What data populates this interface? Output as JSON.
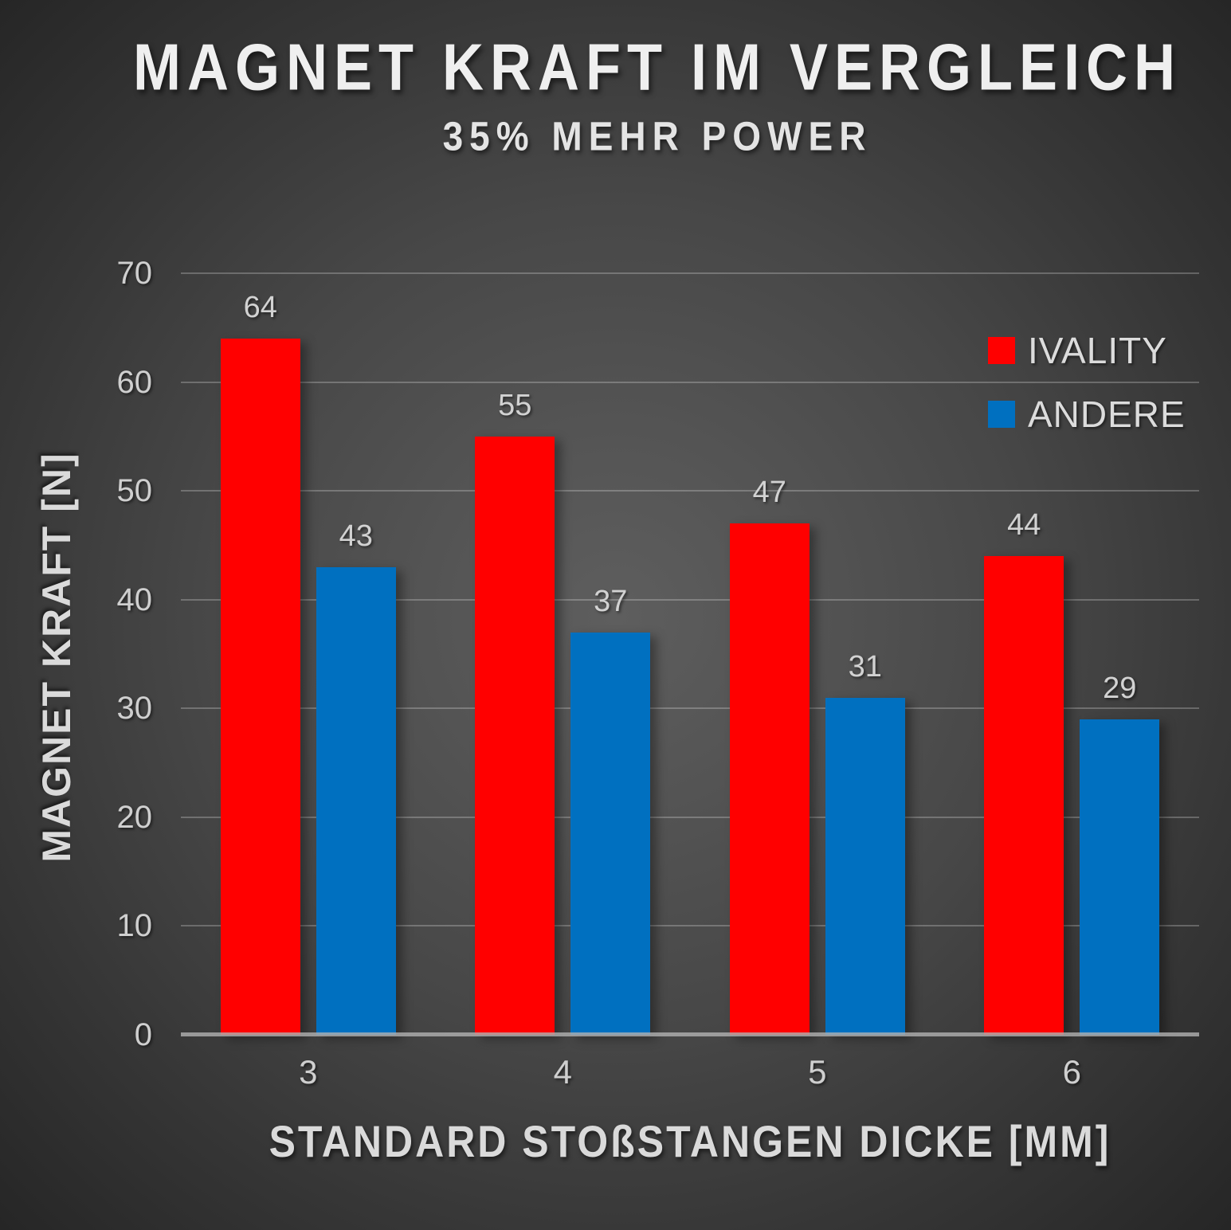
{
  "chart_data": {
    "type": "bar",
    "title": "MAGNET KRAFT IM VERGLEICH",
    "subtitle": "35% MEHR POWER",
    "xlabel": "STANDARD STOßSTANGEN DICKE [MM]",
    "ylabel": "MAGNET KRAFT [N]",
    "categories": [
      "3",
      "4",
      "5",
      "6"
    ],
    "series": [
      {
        "name": "IVALITY",
        "color": "#ff0000",
        "values": [
          64,
          55,
          47,
          44
        ]
      },
      {
        "name": "ANDERE",
        "color": "#0070c0",
        "values": [
          43,
          37,
          31,
          29
        ]
      }
    ],
    "ylim": [
      0,
      70
    ],
    "yticks": [
      0,
      10,
      20,
      30,
      40,
      50,
      60,
      70
    ],
    "grid": true,
    "legend_position": "top-right",
    "colors": {
      "background_center": "#5a5a5a",
      "background_edge": "#272727",
      "title_text": "#efefef",
      "tick_text": "#cfcfcf",
      "data_label_text": "#d2d2d2",
      "gridline": "rgba(255,255,255,0.24)",
      "baseline": "#b2b2b2"
    }
  }
}
